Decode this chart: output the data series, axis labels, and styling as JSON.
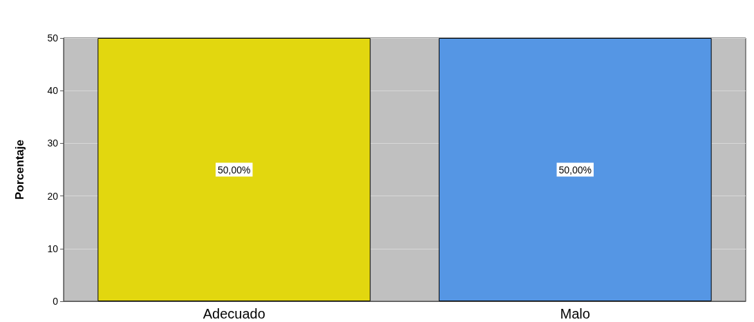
{
  "chart_data": {
    "type": "bar",
    "ylabel": "Porcentaje",
    "categories": [
      "Adecuado",
      "Malo"
    ],
    "values": [
      50,
      50
    ],
    "colors": [
      "#e2d70f",
      "#5596e4"
    ],
    "value_labels": [
      "50,00%",
      "50,00%"
    ],
    "ylim": [
      0,
      50
    ],
    "yticks": [
      0,
      10,
      20,
      30,
      40,
      50
    ],
    "grid": "y"
  }
}
